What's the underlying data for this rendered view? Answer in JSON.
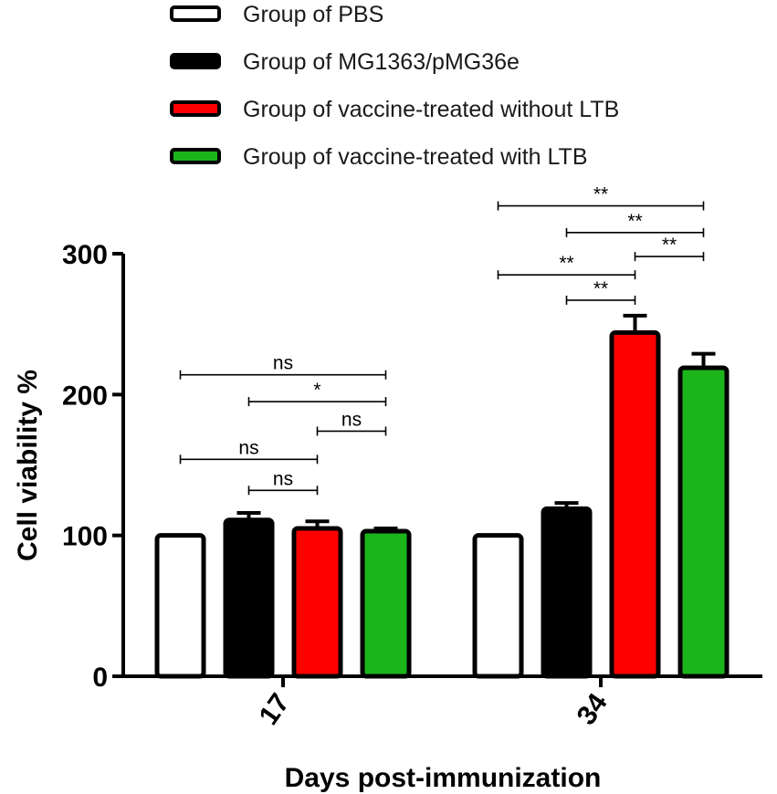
{
  "chart_data": {
    "type": "bar",
    "xlabel": "Days post-immunization",
    "ylabel": "Cell viability %",
    "ylim": [
      0,
      300
    ],
    "yticks": [
      0,
      100,
      200,
      300
    ],
    "categories": [
      "17",
      "34"
    ],
    "legend_position": "top-left",
    "series": [
      {
        "name": "Group of PBS",
        "color": "#ffffff",
        "values": [
          100,
          100
        ],
        "errors": [
          0,
          0
        ]
      },
      {
        "name": "Group of MG1363/pMG36e",
        "color": "#000000",
        "values": [
          111,
          119
        ],
        "errors": [
          5,
          4
        ]
      },
      {
        "name": "Group of vaccine-treated without LTB",
        "color": "#ff0000",
        "values": [
          105,
          244
        ],
        "errors": [
          5,
          12
        ]
      },
      {
        "name": "Group of vaccine-treated with LTB",
        "color": "#1bb51b",
        "values": [
          103,
          219
        ],
        "errors": [
          2,
          10
        ]
      }
    ],
    "significance": [
      {
        "category": 0,
        "from": 0,
        "to": 3,
        "label": "ns",
        "y": 214
      },
      {
        "category": 0,
        "from": 1,
        "to": 3,
        "label": "*",
        "y": 195
      },
      {
        "category": 0,
        "from": 2,
        "to": 3,
        "label": "ns",
        "y": 174
      },
      {
        "category": 0,
        "from": 0,
        "to": 2,
        "label": "ns",
        "y": 154
      },
      {
        "category": 0,
        "from": 1,
        "to": 2,
        "label": "ns",
        "y": 132
      },
      {
        "category": 1,
        "from": 0,
        "to": 3,
        "label": "**",
        "y": 334
      },
      {
        "category": 1,
        "from": 1,
        "to": 3,
        "label": "**",
        "y": 315
      },
      {
        "category": 1,
        "from": 2,
        "to": 3,
        "label": "**",
        "y": 298
      },
      {
        "category": 1,
        "from": 0,
        "to": 2,
        "label": "**",
        "y": 285
      },
      {
        "category": 1,
        "from": 1,
        "to": 2,
        "label": "**",
        "y": 267
      }
    ]
  }
}
